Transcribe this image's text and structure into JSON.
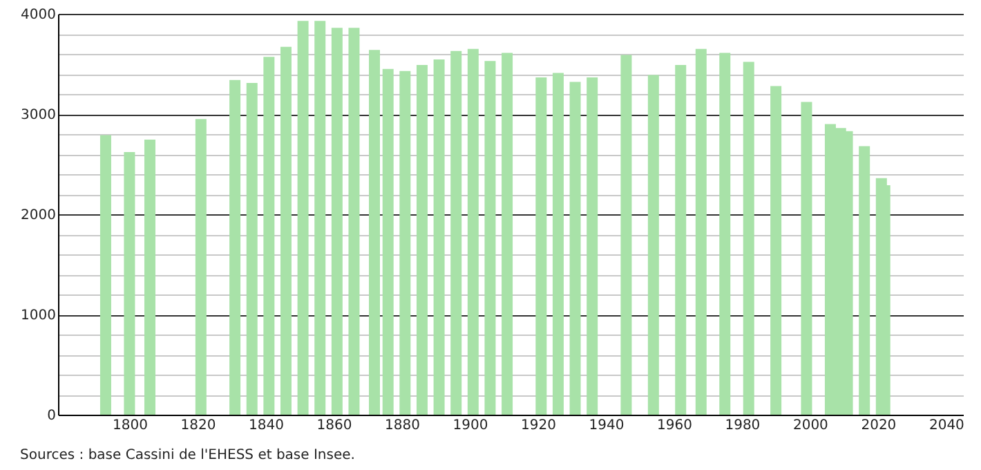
{
  "chart_data": {
    "type": "bar",
    "color": "#a8e2a8",
    "x": [
      1793,
      1800,
      1806,
      1821,
      1831,
      1836,
      1841,
      1846,
      1851,
      1856,
      1861,
      1866,
      1872,
      1876,
      1881,
      1886,
      1891,
      1896,
      1901,
      1906,
      1911,
      1921,
      1926,
      1931,
      1936,
      1946,
      1954,
      1962,
      1968,
      1975,
      1982,
      1990,
      1999,
      2006,
      2009,
      2011,
      2016,
      2021,
      2022
    ],
    "values": [
      2790,
      2620,
      2745,
      2950,
      3340,
      3310,
      3570,
      3670,
      3930,
      3930,
      3860,
      3860,
      3640,
      3450,
      3430,
      3490,
      3545,
      3630,
      3650,
      3530,
      3610,
      3365,
      3410,
      3320,
      3365,
      3590,
      3390,
      3490,
      3650,
      3610,
      3520,
      3280,
      3120,
      2900,
      2860,
      2830,
      2680,
      2360,
      2290
    ],
    "xlim": [
      1779,
      2045
    ],
    "xticks": [
      1800,
      1820,
      1840,
      1860,
      1880,
      1900,
      1920,
      1940,
      1960,
      1980,
      2000,
      2020,
      2040
    ],
    "ylim": [
      0,
      4000
    ],
    "yticks": [
      0,
      {
        "value": 200,
        "label": null
      },
      {
        "value": 400,
        "label": null
      },
      {
        "value": 600,
        "label": null
      },
      {
        "value": 800,
        "label": null
      },
      1000,
      {
        "value": 1200,
        "label": null
      },
      {
        "value": 1400,
        "label": null
      },
      {
        "value": 1600,
        "label": null
      },
      {
        "value": 1800,
        "label": null
      },
      2000,
      {
        "value": 2200,
        "label": null
      },
      {
        "value": 2400,
        "label": null
      },
      {
        "value": 2600,
        "label": null
      },
      {
        "value": 2800,
        "label": null
      },
      3000,
      {
        "value": 3200,
        "label": null
      },
      {
        "value": 3400,
        "label": null
      },
      {
        "value": 3600,
        "label": null
      },
      {
        "value": 3800,
        "label": null
      },
      4000
    ],
    "grid": "y",
    "annotations": [
      "Sources : base Cassini de l'EHESS et base Insee."
    ]
  }
}
